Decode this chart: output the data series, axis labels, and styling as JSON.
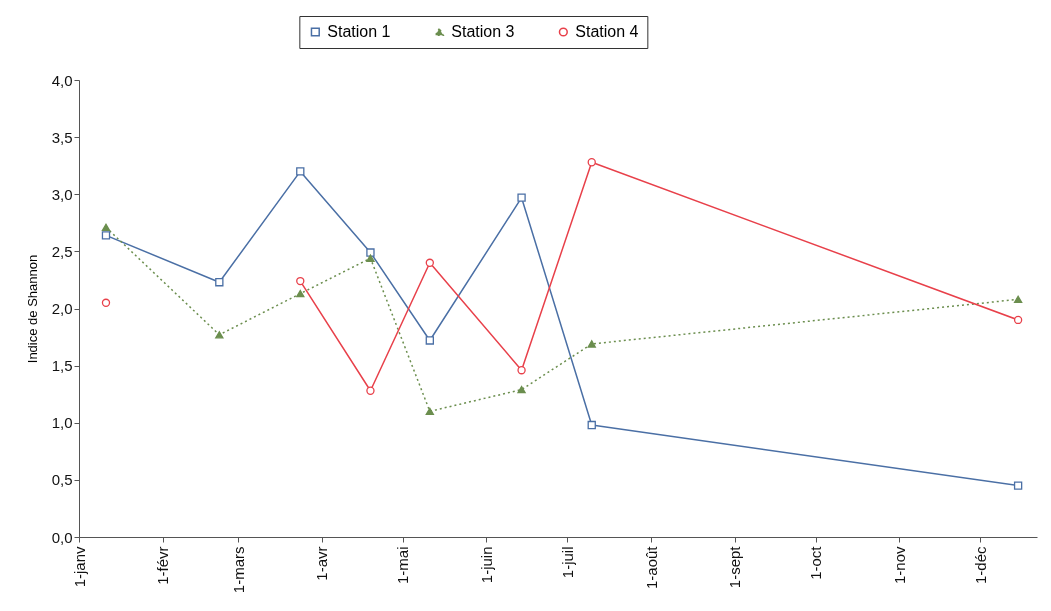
{
  "chart_data": {
    "type": "line",
    "ylabel": "Indice de Shannon",
    "x": [
      "--01-11",
      "--02-22",
      "--03-24",
      "--04-19",
      "--05-11",
      "--06-14",
      "--07-10",
      "--12-15"
    ],
    "xlim": [
      "--01-01",
      "--12-22"
    ],
    "xticks": [
      {
        "value": "--01-01",
        "label": "1-janv"
      },
      {
        "value": "--02-01",
        "label": "1-févr"
      },
      {
        "value": "--03-01",
        "label": "1-mars"
      },
      {
        "value": "--04-01",
        "label": "1-avr"
      },
      {
        "value": "--05-01",
        "label": "1-mai"
      },
      {
        "value": "--06-01",
        "label": "1-juin"
      },
      {
        "value": "--07-01",
        "label": "1-juil"
      },
      {
        "value": "--08-01",
        "label": "1-août"
      },
      {
        "value": "--09-01",
        "label": "1-sept"
      },
      {
        "value": "--10-01",
        "label": "1-oct"
      },
      {
        "value": "--11-01",
        "label": "1-nov"
      },
      {
        "value": "--12-01",
        "label": "1-déc"
      }
    ],
    "ylim": [
      0,
      4
    ],
    "yticks": [
      {
        "value": 0,
        "label": "0,0"
      },
      {
        "value": 0.5,
        "label": "0,5"
      },
      {
        "value": 1,
        "label": "1,0"
      },
      {
        "value": 1.5,
        "label": "1,5"
      },
      {
        "value": 2,
        "label": "2,0"
      },
      {
        "value": 2.5,
        "label": "2,5"
      },
      {
        "value": 3,
        "label": "3,0"
      },
      {
        "value": 3.5,
        "label": "3,5"
      },
      {
        "value": 4,
        "label": "4,0"
      }
    ],
    "grid": false,
    "legend": "top",
    "series": [
      {
        "name": "Station 1",
        "color": "#4a6fa5",
        "marker": "square",
        "line_style": "solid",
        "values": [
          2.64,
          2.23,
          3.2,
          2.49,
          1.72,
          2.97,
          0.98,
          0.45
        ]
      },
      {
        "name": "Station 3",
        "color": "#6b8e4e",
        "marker": "triangle",
        "line_style": "dotted",
        "values": [
          2.71,
          1.77,
          2.13,
          2.44,
          1.1,
          1.29,
          1.69,
          2.08
        ]
      },
      {
        "name": "Station 4",
        "color": "#e8404a",
        "marker": "circle",
        "line_style": "solid",
        "values": [
          2.05,
          null,
          2.24,
          1.28,
          2.4,
          1.46,
          3.28,
          1.9
        ]
      }
    ]
  }
}
